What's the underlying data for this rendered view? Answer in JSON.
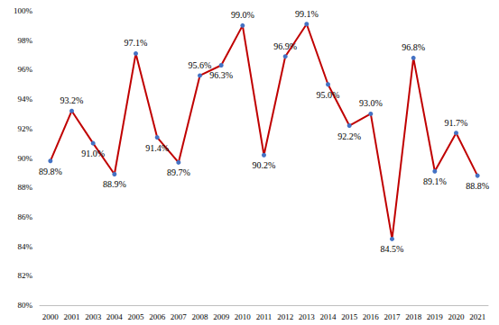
{
  "chart_data": {
    "type": "line",
    "categories": [
      "2000",
      "2001",
      "2003",
      "2004",
      "2005",
      "2006",
      "2007",
      "2008",
      "2009",
      "2010",
      "2011",
      "2012",
      "2013",
      "2014",
      "2015",
      "2016",
      "2017",
      "2018",
      "2019",
      "2020",
      "2021"
    ],
    "values": [
      89.8,
      93.2,
      91.0,
      88.9,
      97.1,
      91.4,
      89.7,
      95.6,
      96.3,
      99.0,
      90.2,
      96.9,
      99.1,
      95.0,
      92.2,
      93.0,
      84.5,
      96.8,
      89.1,
      91.7,
      88.8
    ],
    "value_labels": [
      "89.8%",
      "93.2%",
      "91.0%",
      "88.9%",
      "97.1%",
      "91.4%",
      "89.7%",
      "95.6%",
      "96.3%",
      "99.0%",
      "90.2%",
      "96.9%",
      "99.1%",
      "95.0%",
      "92.2%",
      "93.0%",
      "84.5%",
      "96.8%",
      "89.1%",
      "91.7%",
      "88.8%"
    ],
    "color": "#c00000",
    "marker": "circle",
    "marker_color": "#4472c4",
    "ylim": [
      80,
      100
    ],
    "yticks": [
      {
        "value": 80,
        "label": "80%"
      },
      {
        "value": 82,
        "label": "82%"
      },
      {
        "value": 84,
        "label": "84%"
      },
      {
        "value": 86,
        "label": "86%"
      },
      {
        "value": 88,
        "label": "88%"
      },
      {
        "value": 90,
        "label": "90%"
      },
      {
        "value": 92,
        "label": "92%"
      },
      {
        "value": 94,
        "label": "94%"
      },
      {
        "value": 96,
        "label": "96%"
      },
      {
        "value": 98,
        "label": "98%"
      },
      {
        "value": 100,
        "label": "100%"
      }
    ],
    "grid": false,
    "data_labels": true
  }
}
